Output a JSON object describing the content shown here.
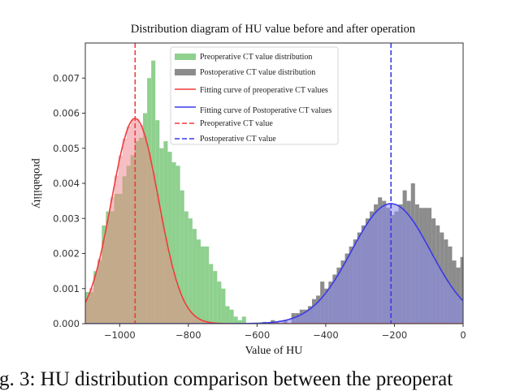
{
  "figure": {
    "title": "Distribution diagram of HU value before and after operation",
    "caption": "ig. 3: HU distribution comparison between the preoperat"
  },
  "colors": {
    "preop_hist": "#8fd08f",
    "postop_hist": "#8c8c8c",
    "preop_fill": "#f4b8bd",
    "postop_fill": "#b9b9f4",
    "preop_curve": "#f03c3c",
    "postop_curve": "#3a3ae8",
    "overlap_brown": "#c2aa8a",
    "overlap_purple": "#8c8cc4"
  },
  "chart_data": {
    "type": "bar",
    "title": "Distribution diagram of HU value before and after operation",
    "xlabel": "Value of HU",
    "ylabel": "probability",
    "xlim": [
      -1100,
      0
    ],
    "ylim": [
      0,
      0.008
    ],
    "xticks": [
      -1000,
      -800,
      -600,
      -400,
      -200,
      0
    ],
    "xtick_labels": [
      "−1000",
      "−800",
      "−600",
      "−400",
      "−200",
      "0"
    ],
    "yticks": [
      0.0,
      0.001,
      0.002,
      0.003,
      0.004,
      0.005,
      0.006,
      0.007
    ],
    "ytick_labels": [
      "0.000",
      "0.001",
      "0.002",
      "0.003",
      "0.004",
      "0.005",
      "0.006",
      "0.007"
    ],
    "grid": false,
    "legend_position": "upper center",
    "legend": [
      {
        "label": "Preoperative CT value distribution",
        "kind": "patch",
        "color": "#8fd08f"
      },
      {
        "label": "Postoperative CT value distribution",
        "kind": "patch",
        "color": "#8c8c8c"
      },
      {
        "label": "Fitting curve of preoperative CT values",
        "kind": "line",
        "color": "#f03c3c"
      },
      {
        "label": "Fitting curve of Postoperative CT values",
        "kind": "line",
        "color": "#3a3ae8"
      },
      {
        "label": "Preoperative CT value",
        "kind": "dashed",
        "color": "#f03c3c"
      },
      {
        "label": "Postoperative CT value",
        "kind": "dashed",
        "color": "#3a3ae8"
      }
    ],
    "series": [
      {
        "name": "Preoperative CT value distribution",
        "type": "histogram",
        "bin_width": 12,
        "bin_start": -1100,
        "values": [
          0.0009,
          0.0009,
          0.0015,
          0.0018,
          0.0028,
          0.0032,
          0.0032,
          0.0037,
          0.0037,
          0.0042,
          0.0045,
          0.0048,
          0.0052,
          0.0053,
          0.006,
          0.007,
          0.0075,
          0.0058,
          0.005,
          0.0052,
          0.0049,
          0.0046,
          0.0045,
          0.0038,
          0.0032,
          0.003,
          0.0027,
          0.0024,
          0.0022,
          0.0022,
          0.0017,
          0.0015,
          0.0012,
          0.001,
          0.0005,
          0.0004,
          0.0002,
          0.0001,
          0.0002,
          0.0
        ]
      },
      {
        "name": "Postoperative CT value distribution",
        "type": "histogram",
        "bin_width": 12,
        "bin_start": -584,
        "values": [
          5e-05,
          0.0,
          0.0001,
          5e-05,
          0.0,
          0.0001,
          0.0,
          0.0003,
          0.0003,
          0.0004,
          0.0004,
          0.0005,
          0.0007,
          0.0008,
          0.0012,
          0.001,
          0.0012,
          0.0014,
          0.0016,
          0.0018,
          0.002,
          0.0022,
          0.0024,
          0.0026,
          0.0028,
          0.003,
          0.0032,
          0.0034,
          0.0036,
          0.0035,
          0.0033,
          0.0031,
          0.0032,
          0.0034,
          0.0038,
          0.0035,
          0.004,
          0.0034,
          0.0033,
          0.0033,
          0.0033,
          0.003,
          0.0028,
          0.0026,
          0.0024,
          0.0022,
          0.0018,
          0.0016,
          0.0019,
          0.0014,
          0.0012
        ]
      },
      {
        "name": "Fitting curve of preoperative CT values",
        "type": "line",
        "distribution": "normal",
        "mean": -955,
        "std": 68,
        "peak": 0.00585
      },
      {
        "name": "Fitting curve of Postoperative CT values",
        "type": "line",
        "distribution": "normal",
        "mean": -210,
        "std": 115,
        "peak": 0.00342
      },
      {
        "name": "Preoperative CT value",
        "type": "vline",
        "x": -955
      },
      {
        "name": "Postoperative CT value",
        "type": "vline",
        "x": -210
      }
    ]
  }
}
